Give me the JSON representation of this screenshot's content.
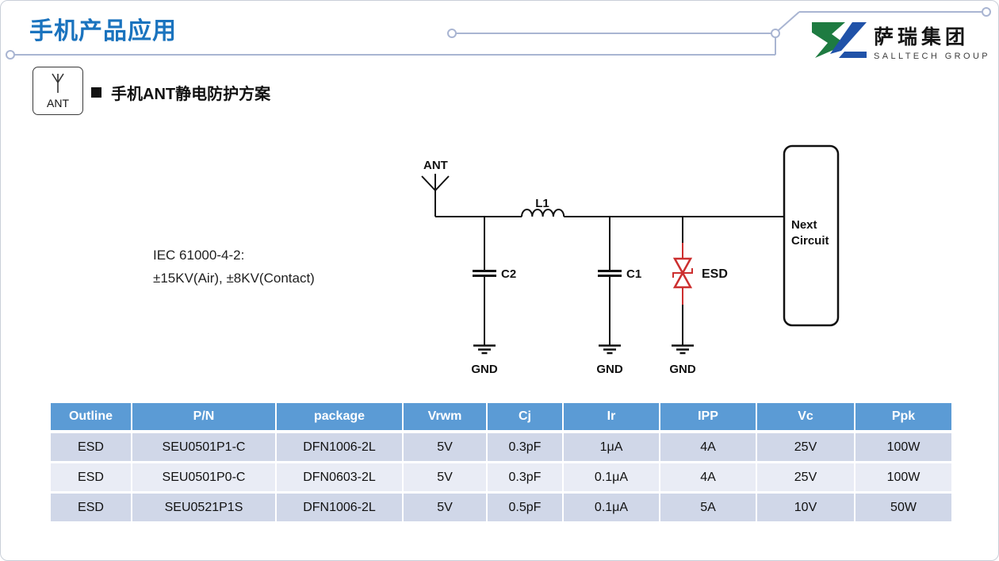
{
  "slide": {
    "title": "手机产品应用",
    "accent": {
      "title_color": "#1a73be",
      "trace_color": "#a9b5d2",
      "esd_color": "#cc2f2f",
      "table_header_bg": "#5b9bd5",
      "table_band_dark": "#d0d7e8",
      "table_band_light": "#e9ecf5",
      "logo_green": "#1e7b41",
      "logo_blue": "#2052a8"
    },
    "logo": {
      "cn": "萨瑞集团",
      "en": "SALLTECH GROUP"
    },
    "ant_badge": {
      "label": "ANT"
    },
    "heading": {
      "bullet": "",
      "text": "手机ANT静电防护方案"
    },
    "iec_note": {
      "line1": "IEC 61000-4-2:",
      "line2": "±15KV(Air), ±8KV(Contact)"
    },
    "circuit": {
      "ant_label": "ANT",
      "inductor_label": "L1",
      "cap2_label": "C2",
      "cap1_label": "C1",
      "esd_label": "ESD",
      "gnd_labels": [
        "GND",
        "GND",
        "GND"
      ],
      "next_circuit": [
        "Next",
        "Circuit"
      ]
    },
    "table": {
      "columns": [
        "Outline",
        "P/N",
        "package",
        "Vrwm",
        "Cj",
        "Ir",
        "IPP",
        "Vc",
        "Ppk"
      ],
      "rows": [
        [
          "ESD",
          "SEU0501P1-C",
          "DFN1006-2L",
          "5V",
          "0.3pF",
          "1μA",
          "4A",
          "25V",
          "100W"
        ],
        [
          "ESD",
          "SEU0501P0-C",
          "DFN0603-2L",
          "5V",
          "0.3pF",
          "0.1μA",
          "4A",
          "25V",
          "100W"
        ],
        [
          "ESD",
          "SEU0521P1S",
          "DFN1006-2L",
          "5V",
          "0.5pF",
          "0.1μA",
          "5A",
          "10V",
          "50W"
        ]
      ]
    }
  }
}
